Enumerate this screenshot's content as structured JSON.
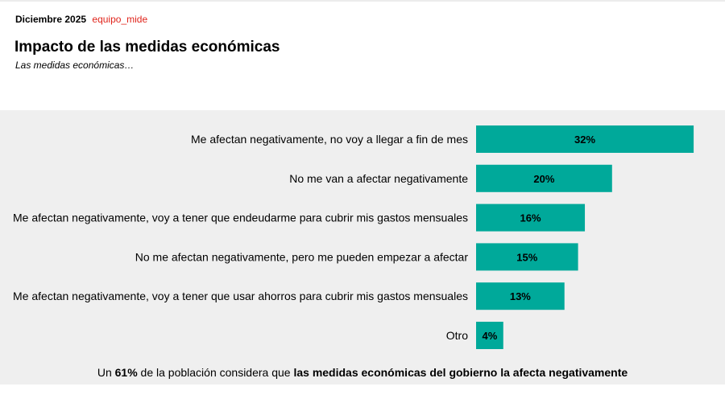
{
  "header": {
    "date": "Diciembre 2025",
    "team": "equipo_mide",
    "title": "Impacto de las medidas económicas",
    "subtitle": "Las medidas económicas…"
  },
  "chart_data": {
    "type": "bar",
    "orientation": "horizontal",
    "categories": [
      "Me afectan negativamente, no voy a llegar a fin de mes",
      "No me van a afectar negativamente",
      "Me afectan negativamente, voy a tener que endeudarme para cubrir mis gastos mensuales",
      "No me afectan negativamente, pero me pueden empezar a afectar",
      "Me afectan negativamente, voy a tener que usar ahorros para cubrir mis gastos mensuales",
      "Otro"
    ],
    "values": [
      32,
      20,
      16,
      15,
      13,
      4
    ],
    "data_labels": [
      "32%",
      "20%",
      "16%",
      "15%",
      "13%",
      "4%"
    ],
    "unit": "%",
    "bar_color": "#00a99a",
    "grid": false
  },
  "footer": {
    "prefix": "Un ",
    "highlight": "61%",
    "middle": " de la población considera que ",
    "bold_end": "las medidas económicas del gobierno la afecta negativamente"
  }
}
